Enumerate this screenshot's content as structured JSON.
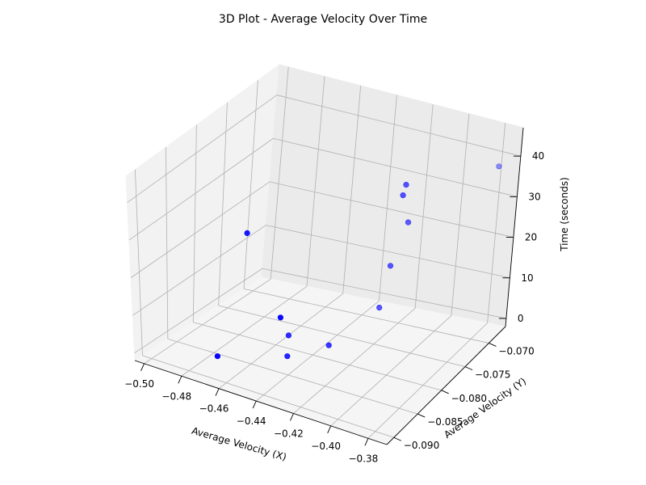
{
  "chart_data": {
    "type": "scatter",
    "title": "3D Plot - Average Velocity Over Time",
    "xlabel": "Average Velocity (X)",
    "ylabel": "Average Velocity (Y)",
    "zlabel": "Time (seconds)",
    "xlim": [
      -0.505,
      -0.37
    ],
    "ylim": [
      -0.0915,
      -0.0665
    ],
    "zlim": [
      -2,
      47
    ],
    "xticks": [
      "−0.50",
      "−0.48",
      "−0.46",
      "−0.44",
      "−0.42",
      "−0.40",
      "−0.38"
    ],
    "xtick_values": [
      -0.5,
      -0.48,
      -0.46,
      -0.44,
      -0.42,
      -0.4,
      -0.38
    ],
    "yticks": [
      "−0.090",
      "−0.085",
      "−0.080",
      "−0.075",
      "−0.070"
    ],
    "ytick_values": [
      -0.09,
      -0.085,
      -0.08,
      -0.075,
      -0.07
    ],
    "zticks": [
      "0",
      "10",
      "20",
      "30",
      "40"
    ],
    "ztick_values": [
      0,
      10,
      20,
      30,
      40
    ],
    "grid": true,
    "marker_color": "#0000ff",
    "points": [
      {
        "x": -0.463,
        "y": -0.0905,
        "z": 5
      },
      {
        "x": -0.43,
        "y": -0.0902,
        "z": 20
      },
      {
        "x": -0.44,
        "y": -0.0852,
        "z": 3
      },
      {
        "x": -0.455,
        "y": -0.0875,
        "z": 35
      },
      {
        "x": -0.402,
        "y": -0.077,
        "z": 42
      },
      {
        "x": -0.41,
        "y": -0.0763,
        "z": 20
      },
      {
        "x": -0.425,
        "y": -0.0825,
        "z": 5
      },
      {
        "x": -0.444,
        "y": -0.0835,
        "z": 6
      },
      {
        "x": -0.405,
        "y": -0.0751,
        "z": 30
      },
      {
        "x": -0.413,
        "y": -0.077,
        "z": 10
      },
      {
        "x": -0.402,
        "y": -0.0775,
        "z": 40
      },
      {
        "x": -0.38,
        "y": -0.067,
        "z": 37
      }
    ]
  }
}
